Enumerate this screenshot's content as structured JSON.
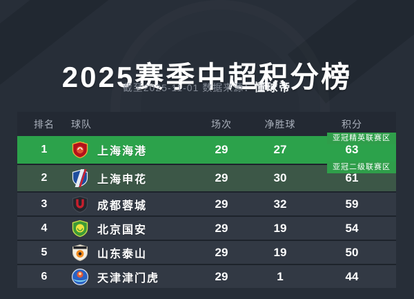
{
  "page": {
    "title": "2025赛季中超积分榜",
    "subtitle_prefix": "截至2025-11-01 数据来源：",
    "source": "懂球帝"
  },
  "colors": {
    "background": "#272e38",
    "highlight_green": "#2ca24b",
    "sub_green": "#3c5747",
    "row_bg": "#323944",
    "header_bg": "#232933",
    "badge_green": "#2f9e4a",
    "text_primary": "#ffffff",
    "text_muted": "#848b96"
  },
  "table": {
    "headers": {
      "rank": "排名",
      "team": "球队",
      "matches": "场次",
      "gd": "净胜球",
      "points": "积分"
    },
    "rows": [
      {
        "rank": "1",
        "team": "上海海港",
        "matches": "29",
        "gd": "27",
        "points": "63",
        "badge": "亚冠精英联赛区",
        "style": "elite",
        "logo": {
          "icon": "shanghai-port-crest-icon",
          "type": "port",
          "colors": [
            "#b5121b",
            "#e8b33c",
            "#e0532f"
          ]
        }
      },
      {
        "rank": "2",
        "team": "上海申花",
        "matches": "29",
        "gd": "30",
        "points": "61",
        "badge": "亚冠二级联赛区",
        "style": "sub",
        "logo": {
          "icon": "shanghai-shenhua-crest-icon",
          "type": "shenhua",
          "colors": [
            "#1f4e9e",
            "#e8ecf2",
            "#cf2031"
          ]
        }
      },
      {
        "rank": "3",
        "team": "成都蓉城",
        "matches": "29",
        "gd": "32",
        "points": "59",
        "logo": {
          "icon": "chengdu-rongcheng-crest-icon",
          "type": "rongcheng",
          "colors": [
            "#23262d",
            "#c81f2d",
            "#454b55"
          ]
        }
      },
      {
        "rank": "4",
        "team": "北京国安",
        "matches": "29",
        "gd": "19",
        "points": "54",
        "logo": {
          "icon": "beijing-guoan-crest-icon",
          "type": "guoan",
          "colors": [
            "#3d9b35",
            "#cdde4a",
            "#efe23f"
          ]
        }
      },
      {
        "rank": "5",
        "team": "山东泰山",
        "matches": "29",
        "gd": "19",
        "points": "50",
        "logo": {
          "icon": "shandong-taishan-crest-icon",
          "type": "taishan",
          "colors": [
            "#f4efe2",
            "#23252a",
            "#f08a1d"
          ]
        }
      },
      {
        "rank": "6",
        "team": "天津津门虎",
        "matches": "29",
        "gd": "1",
        "points": "44",
        "logo": {
          "icon": "tianjin-jinmenhu-crest-icon",
          "type": "tianjin",
          "colors": [
            "#2a63c4",
            "#e05a3a",
            "#7fd4ef"
          ]
        }
      }
    ]
  }
}
